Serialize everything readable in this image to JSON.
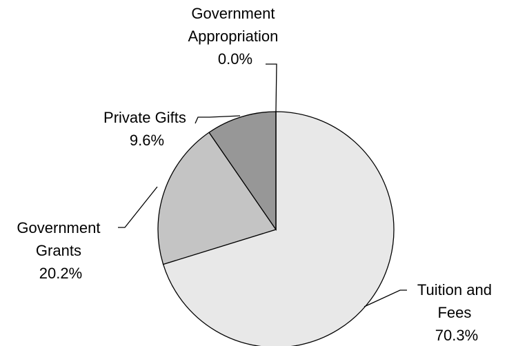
{
  "chart_data": {
    "type": "pie",
    "start_angle": "12 o'clock",
    "direction": "clockwise",
    "legend": "none",
    "slices": [
      {
        "id": "tuition",
        "label_lines": [
          "Tuition and",
          "Fees"
        ],
        "value": 70.3,
        "value_label": "70.3%",
        "color": "#e8e8e8"
      },
      {
        "id": "grants",
        "label_lines": [
          "Government",
          "Grants"
        ],
        "value": 20.2,
        "value_label": "20.2%",
        "color": "#c4c4c4"
      },
      {
        "id": "gifts",
        "label_lines": [
          "Private Gifts"
        ],
        "value": 9.6,
        "value_label": "9.6%",
        "color": "#979797"
      },
      {
        "id": "appropriation",
        "label_lines": [
          "Government",
          "Appropriation"
        ],
        "value": 0.0,
        "value_label": "0.0%",
        "color": "#6e6e6e"
      }
    ]
  }
}
